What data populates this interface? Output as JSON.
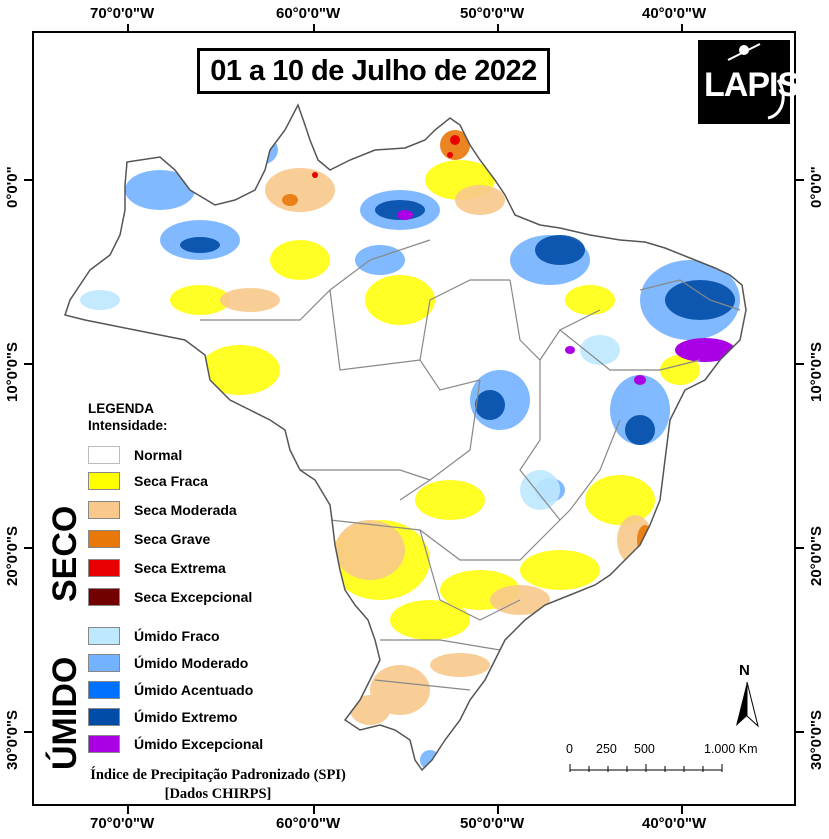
{
  "title": "01 a 10 de Julho de 2022",
  "logo_text": "LAPIS",
  "axes": {
    "top_labels": [
      "70°0'0\"W",
      "60°0'0\"W",
      "50°0'0\"W",
      "40°0'0\"W"
    ],
    "bottom_labels": [
      "70°0'0\"W",
      "60°0'0\"W",
      "50°0'0\"W",
      "40°0'0\"W"
    ],
    "left_labels": [
      "0°0'0\"",
      "10°0'0\"S",
      "20°0'0\"S",
      "30°0'0\"S"
    ],
    "right_labels": [
      "0°0'0\"",
      "10°0'0\"S",
      "20°0'0\"S",
      "30°0'0\"S"
    ]
  },
  "legend": {
    "heading": "LEGENDA",
    "subheading": "Intensidade:",
    "normal": {
      "label": "Normal",
      "color": "#ffffff"
    },
    "seco_group": "SECO",
    "seco": [
      {
        "label": "Seca Fraca",
        "color": "#ffff00"
      },
      {
        "label": "Seca Moderada",
        "color": "#f8c98b"
      },
      {
        "label": "Seca Grave",
        "color": "#e8780a"
      },
      {
        "label": "Seca Extrema",
        "color": "#e80000"
      },
      {
        "label": "Seca Excepcional",
        "color": "#730000"
      }
    ],
    "umido_group": "ÚMIDO",
    "umido": [
      {
        "label": "Úmido Fraco",
        "color": "#bee8ff"
      },
      {
        "label": "Úmido Moderado",
        "color": "#73b2ff"
      },
      {
        "label": "Úmido Acentuado",
        "color": "#0070ff"
      },
      {
        "label": "Úmido Extremo",
        "color": "#004da8"
      },
      {
        "label": "Úmido Excepcional",
        "color": "#a900e6"
      }
    ]
  },
  "footer": {
    "line1": "Índice de Precipitação Padronizado (SPI)",
    "line2": "[Dados CHIRPS]"
  },
  "scale_bar": {
    "labels": [
      "0",
      "250",
      "500",
      "1.000 Km"
    ]
  },
  "north_arrow": "N",
  "map_colors": {
    "border": "#555555",
    "state_lines": "#888888"
  }
}
